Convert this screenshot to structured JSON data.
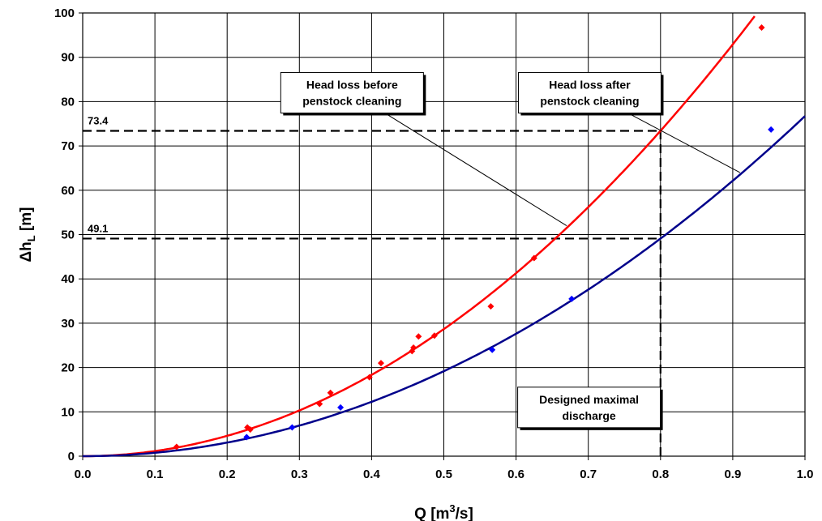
{
  "chart_data": {
    "type": "scatter",
    "xlabel": "Q [m³/s]",
    "ylabel": "Δh_L [m]",
    "xlim": [
      0,
      1.0
    ],
    "ylim": [
      0,
      100
    ],
    "x_ticks": [
      "0.0",
      "0.1",
      "0.2",
      "0.3",
      "0.4",
      "0.5",
      "0.6",
      "0.7",
      "0.8",
      "0.9",
      "1.0"
    ],
    "y_ticks": [
      "0",
      "10",
      "20",
      "30",
      "40",
      "50",
      "60",
      "70",
      "80",
      "90",
      "100"
    ],
    "grid": true,
    "series": [
      {
        "color": "#ff0000",
        "markers": [
          [
            0.13,
            2.1
          ],
          [
            0.228,
            6.5
          ],
          [
            0.232,
            6.0
          ],
          [
            0.328,
            11.8
          ],
          [
            0.343,
            14.3
          ],
          [
            0.397,
            17.8
          ],
          [
            0.413,
            21.0
          ],
          [
            0.456,
            23.7
          ],
          [
            0.458,
            24.5
          ],
          [
            0.465,
            27.0
          ],
          [
            0.487,
            27.2
          ],
          [
            0.565,
            33.8
          ],
          [
            0.625,
            44.7
          ],
          [
            0.94,
            96.7
          ]
        ],
        "fit": {
          "model": "power",
          "coef": 114.7,
          "exponent": 2.0,
          "x_max": 0.935
        }
      },
      {
        "color": "#00008b",
        "markers": [
          [
            0.227,
            4.3
          ],
          [
            0.29,
            6.5
          ],
          [
            0.357,
            11.0
          ],
          [
            0.567,
            24.0
          ],
          [
            0.677,
            35.5
          ],
          [
            0.953,
            73.7
          ]
        ],
        "fit": {
          "model": "power",
          "coef": 76.72,
          "exponent": 2.0,
          "x_max": 1.0
        }
      }
    ],
    "marker_color": "#0000ff",
    "reference_lines": [
      {
        "axis": "y",
        "value": 73.4,
        "label": "73.4",
        "x_to": 0.8
      },
      {
        "axis": "y",
        "value": 49.1,
        "label": "49.1",
        "x_to": 0.8
      },
      {
        "axis": "x",
        "value": 0.8,
        "y_to": 73.4
      }
    ],
    "annotations": [
      {
        "line1": "Head loss before",
        "line2": "penstock cleaning",
        "box_center": [
          0.373,
          82.0
        ],
        "arrow_to": [
          0.67,
          52.0
        ]
      },
      {
        "line1": "Head loss after",
        "line2": "penstock cleaning",
        "box_center": [
          0.702,
          82.0
        ],
        "arrow_to": [
          0.91,
          64.0
        ]
      },
      {
        "line1": "Designed maximal",
        "line2": "discharge",
        "box_center": [
          0.701,
          11.0
        ],
        "arrow_to": [
          0.8,
          15.5
        ]
      }
    ]
  }
}
